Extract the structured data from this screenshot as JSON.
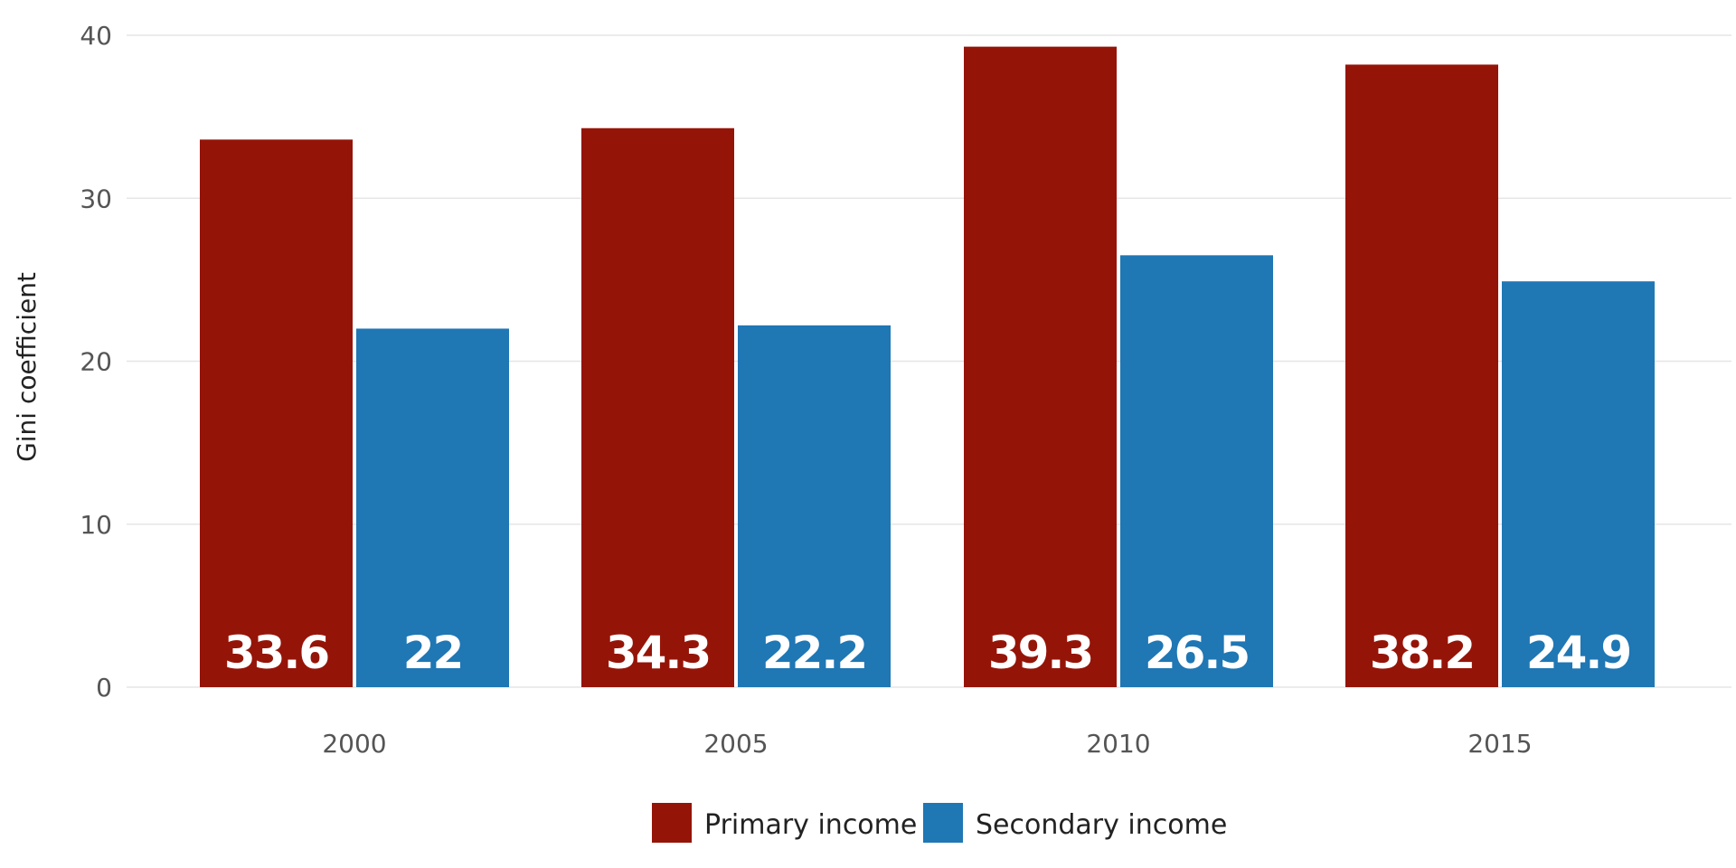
{
  "chart_data": {
    "type": "bar",
    "categories": [
      "2000",
      "2005",
      "2010",
      "2015"
    ],
    "series": [
      {
        "name": "Primary income",
        "values": [
          33.6,
          34.3,
          39.3,
          38.2
        ],
        "labels": [
          "33.6",
          "34.3",
          "39.3",
          "38.2"
        ],
        "color": "#951408"
      },
      {
        "name": "Secondary income",
        "values": [
          22,
          22.2,
          26.5,
          24.9
        ],
        "labels": [
          "22",
          "22.2",
          "26.5",
          "24.9"
        ],
        "color": "#1f77b4"
      }
    ],
    "title": "",
    "xlabel": "",
    "ylabel": "Gini coefficient",
    "ylim": [
      0,
      40
    ],
    "yticks": [
      0,
      10,
      20,
      30,
      40
    ],
    "ytick_labels": [
      "0",
      "10",
      "20",
      "30",
      "40"
    ],
    "grid": true,
    "legend_position": "bottom-center"
  }
}
